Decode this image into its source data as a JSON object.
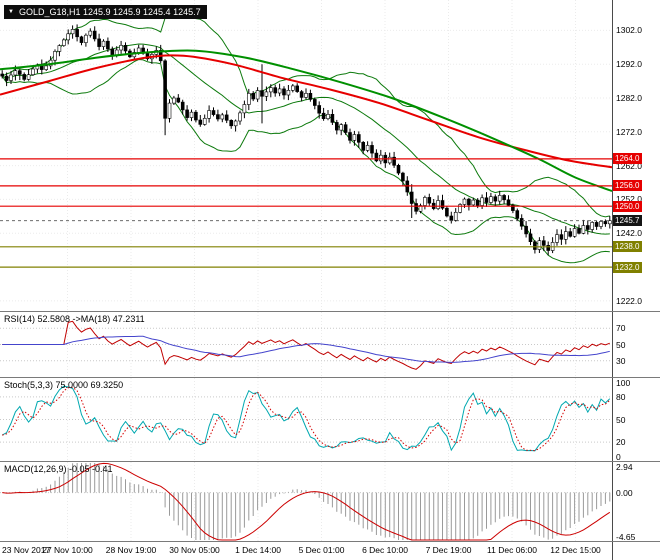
{
  "header": {
    "symbol_info": "GOLD_G18,H1 1245.9 1245.9 1245.4 1245.7"
  },
  "colors": {
    "bullish_candle": "#ffffff",
    "bearish_candle": "#000000",
    "candle_outline": "#000000",
    "bollinger": "#0d7a0d",
    "ma_fast_red": "#e60000",
    "ma_slow_green": "#009000",
    "resistance_line": "#e60000",
    "support_line": "#808000",
    "current_price_badge": "#141414",
    "rsi_line": "#c00000",
    "rsi_ma_line": "#4444cc",
    "stoch_main": "#00a8b0",
    "stoch_signal": "#d40000",
    "macd_histogram": "#9a9a9a",
    "macd_signal": "#cc0000",
    "grid": "#ebebeb",
    "level_dotted": "#c9c9c9",
    "axis_text": "#000000"
  },
  "chart_data": {
    "type": "candlestick",
    "title": "GOLD_G18 H1 chart with Bollinger Bands, two moving averages, support/resistance levels, RSI, Stochastic and MACD",
    "symbol": "GOLD_G18",
    "timeframe": "H1",
    "ohlc_header": {
      "open": "1245.9",
      "high": "1245.9",
      "low": "1245.4",
      "close": "1245.7"
    },
    "price_panel": {
      "y_range": [
        1219,
        1311
      ],
      "y_ticks": [
        "1302.0",
        "1292.0",
        "1282.0",
        "1272.0",
        "1262.0",
        "1252.0",
        "1242.0",
        "1222.0"
      ],
      "closes": [
        1288.5,
        1287.2,
        1288.8,
        1290.1,
        1289.0,
        1287.5,
        1288.9,
        1290.6,
        1291.8,
        1290.4,
        1291.5,
        1293.2,
        1295.8,
        1297.5,
        1299.2,
        1301.0,
        1302.3,
        1300.1,
        1298.4,
        1300.6,
        1301.8,
        1299.5,
        1297.2,
        1298.8,
        1296.5,
        1294.8,
        1296.2,
        1297.6,
        1295.9,
        1294.2,
        1295.5,
        1296.8,
        1295.2,
        1293.6,
        1294.9,
        1296.1,
        1293.0,
        1276.0,
        1280.5,
        1282.0,
        1280.8,
        1278.5,
        1276.2,
        1277.8,
        1275.5,
        1274.2,
        1276.0,
        1278.3,
        1277.1,
        1275.8,
        1277.0,
        1275.4,
        1273.8,
        1275.2,
        1277.6,
        1280.1,
        1283.4,
        1281.7,
        1284.2,
        1282.5,
        1283.8,
        1285.1,
        1283.5,
        1284.7,
        1282.9,
        1284.3,
        1285.6,
        1283.9,
        1282.2,
        1283.4,
        1281.6,
        1279.8,
        1277.5,
        1275.9,
        1277.2,
        1274.8,
        1272.5,
        1274.1,
        1271.8,
        1269.5,
        1271.2,
        1268.9,
        1266.5,
        1268.0,
        1265.7,
        1263.4,
        1265.1,
        1262.8,
        1264.5,
        1262.1,
        1259.8,
        1257.5,
        1254.2,
        1250.8,
        1248.5,
        1250.2,
        1252.6,
        1250.9,
        1249.3,
        1251.7,
        1249.4,
        1247.1,
        1245.8,
        1248.2,
        1250.5,
        1252.1,
        1250.4,
        1251.8,
        1250.2,
        1252.5,
        1251.1,
        1252.8,
        1251.5,
        1253.2,
        1251.9,
        1250.3,
        1248.7,
        1246.4,
        1244.1,
        1241.8,
        1239.5,
        1237.2,
        1239.8,
        1238.4,
        1236.9,
        1239.3,
        1241.6,
        1240.2,
        1242.5,
        1241.1,
        1243.4,
        1242.0,
        1244.3,
        1243.1,
        1245.2,
        1244.0,
        1245.5,
        1244.8,
        1245.7
      ],
      "spikes": [
        {
          "i": 16,
          "high": 1303.5
        },
        {
          "i": 37,
          "high": 1293.5,
          "low": 1271.0
        },
        {
          "i": 59,
          "high": 1292.0,
          "low": 1274.5
        },
        {
          "i": 93,
          "high": 1256.5,
          "low": 1246.5
        },
        {
          "i": 124,
          "low": 1235.5
        }
      ],
      "bollinger": {
        "period": 20,
        "deviation": 2
      },
      "ma_red_points": [
        [
          0,
          1283
        ],
        [
          0.08,
          1287
        ],
        [
          0.16,
          1291
        ],
        [
          0.24,
          1294
        ],
        [
          0.3,
          1294.5
        ],
        [
          0.38,
          1292
        ],
        [
          0.46,
          1288
        ],
        [
          0.54,
          1284.5
        ],
        [
          0.62,
          1280.5
        ],
        [
          0.7,
          1275.5
        ],
        [
          0.78,
          1270.5
        ],
        [
          0.86,
          1266.5
        ],
        [
          0.93,
          1263.5
        ],
        [
          1,
          1261.5
        ]
      ],
      "ma_green_points": [
        [
          0,
          1290.5
        ],
        [
          0.08,
          1292
        ],
        [
          0.16,
          1294
        ],
        [
          0.24,
          1295.5
        ],
        [
          0.32,
          1296
        ],
        [
          0.4,
          1294
        ],
        [
          0.48,
          1290.5
        ],
        [
          0.56,
          1286.5
        ],
        [
          0.64,
          1282
        ],
        [
          0.72,
          1276.5
        ],
        [
          0.8,
          1270.5
        ],
        [
          0.88,
          1264
        ],
        [
          0.94,
          1258.5
        ],
        [
          1,
          1254.5
        ]
      ],
      "levels": [
        {
          "price": 1264.0,
          "label": "1264.0",
          "type": "resistance"
        },
        {
          "price": 1256.0,
          "label": "1256.0",
          "type": "resistance"
        },
        {
          "price": 1250.0,
          "label": "1250.0",
          "type": "resistance"
        },
        {
          "price": 1238.0,
          "label": "1238.0",
          "type": "support"
        },
        {
          "price": 1232.0,
          "label": "1232.0",
          "type": "support"
        }
      ],
      "current_price": {
        "value": 1245.7,
        "label": "1245.7"
      }
    },
    "x_labels": [
      "23 Nov 2017",
      "27 Nov 10:00",
      "28 Nov 19:00",
      "30 Nov 05:00",
      "1 Dec 14:00",
      "5 Dec 01:00",
      "6 Dec 10:00",
      "7 Dec 19:00",
      "11 Dec 06:00",
      "12 Dec 15:00"
    ],
    "panels": {
      "rsi": {
        "label": "RSI(14) 52.5808 ->MA(18) 47.2311",
        "period": 14,
        "ma_period": 18,
        "range": [
          10,
          90
        ],
        "ticks": [
          {
            "v": 70,
            "label": "70"
          },
          {
            "v": 50,
            "label": "50"
          },
          {
            "v": 30,
            "label": "30"
          }
        ],
        "levels": [
          70,
          50,
          30
        ]
      },
      "stoch": {
        "label": "Stoch(5,3,3) 75.0000 69.3250",
        "k_period": 5,
        "slowing": 3,
        "d_period": 3,
        "range": [
          -5,
          105
        ],
        "ticks": [
          {
            "v": 100,
            "label": "100"
          },
          {
            "v": 80,
            "label": "80"
          },
          {
            "v": 50,
            "label": "50"
          },
          {
            "v": 20,
            "label": "20"
          },
          {
            "v": 0,
            "label": "0"
          }
        ],
        "levels": [
          80,
          50,
          20
        ]
      },
      "macd": {
        "label": "MACD(12,26,9) -0.05 -0.41",
        "fast": 12,
        "slow": 26,
        "signal": 9,
        "range": [
          -4.9,
          3.1
        ],
        "ticks": [
          {
            "v": 2.94,
            "label": "2.94"
          },
          {
            "v": 0,
            "label": "0.00"
          },
          {
            "v": -4.65,
            "label": "-4.65"
          }
        ]
      }
    }
  }
}
